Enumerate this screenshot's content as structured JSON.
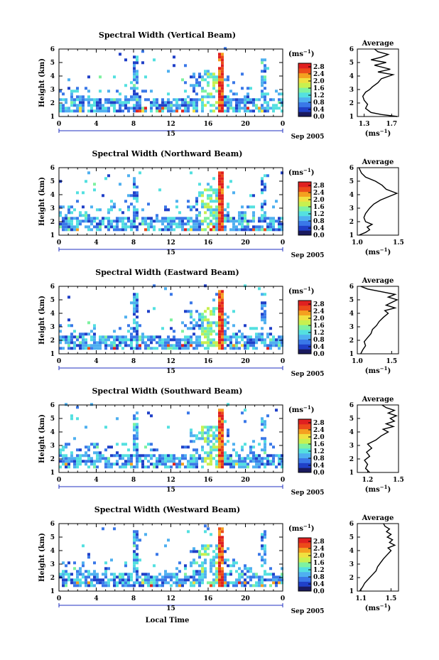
{
  "figure": {
    "xlabel": "Local Time",
    "date_label": "Sep 2005"
  },
  "colorbar": {
    "unit_label": "(ms",
    "unit_exp": "−1",
    "ticks": [
      "0.0",
      "0.4",
      "0.8",
      "1.2",
      "1.6",
      "2.0",
      "2.4",
      "2.8"
    ],
    "range": [
      0,
      3.0
    ],
    "colors": [
      "#1a1a5e",
      "#2040c8",
      "#3a78e8",
      "#4fb0f0",
      "#54e0e0",
      "#7ef2a0",
      "#c8f050",
      "#f0e040",
      "#f4a020",
      "#ec4a1a",
      "#e02020"
    ]
  },
  "chart_data": [
    {
      "type": "heatmap",
      "title": "Spectral Width (Vertical Beam)",
      "xlabel": "",
      "ylabel": "Height (km)",
      "xlim": [
        0,
        24
      ],
      "ylim": [
        1,
        6
      ],
      "x_ticks": [
        "0",
        "4",
        "8",
        "12",
        "16",
        "20",
        "0"
      ],
      "x_day_tick": "15",
      "y_ticks": [
        "1",
        "2",
        "3",
        "4",
        "5",
        "6"
      ],
      "average_profile": {
        "title": "Average",
        "xlabel": "(ms",
        "xlabel_exp": "−1",
        "xlim": [
          1.2,
          1.8
        ],
        "x_ticks": [
          "1.3",
          "1.7"
        ],
        "y_ticks": [
          "1",
          "2",
          "3",
          "4",
          "5",
          "6"
        ],
        "points": [
          [
            1.78,
            1.0
          ],
          [
            1.55,
            1.15
          ],
          [
            1.4,
            1.3
          ],
          [
            1.32,
            1.6
          ],
          [
            1.35,
            1.9
          ],
          [
            1.3,
            2.2
          ],
          [
            1.28,
            2.5
          ],
          [
            1.32,
            2.8
          ],
          [
            1.38,
            3.0
          ],
          [
            1.42,
            3.2
          ],
          [
            1.5,
            3.5
          ],
          [
            1.55,
            3.8
          ],
          [
            1.72,
            4.1
          ],
          [
            1.5,
            4.3
          ],
          [
            1.68,
            4.5
          ],
          [
            1.45,
            4.8
          ],
          [
            1.62,
            5.0
          ],
          [
            1.4,
            5.2
          ],
          [
            1.55,
            5.4
          ],
          [
            1.65,
            5.6
          ],
          [
            1.5,
            5.8
          ],
          [
            1.45,
            6.0
          ]
        ]
      }
    },
    {
      "type": "heatmap",
      "title": "Spectral Width (Northward Beam)",
      "xlabel": "",
      "ylabel": "Height (km)",
      "xlim": [
        0,
        24
      ],
      "ylim": [
        1,
        6
      ],
      "x_ticks": [
        "0",
        "4",
        "8",
        "12",
        "16",
        "20",
        "0"
      ],
      "x_day_tick": "15",
      "y_ticks": [
        "1",
        "2",
        "3",
        "4",
        "5",
        "6"
      ],
      "average_profile": {
        "title": "Average",
        "xlabel": "(ms",
        "xlabel_exp": "−1",
        "xlim": [
          1.0,
          1.5
        ],
        "x_ticks": [
          "1.0",
          "1.5"
        ],
        "y_ticks": [
          "1",
          "2",
          "3",
          "4",
          "5",
          "6"
        ],
        "points": [
          [
            1.02,
            1.0
          ],
          [
            1.1,
            1.2
          ],
          [
            1.15,
            1.4
          ],
          [
            1.12,
            1.6
          ],
          [
            1.18,
            1.8
          ],
          [
            1.1,
            2.0
          ],
          [
            1.08,
            2.3
          ],
          [
            1.1,
            2.6
          ],
          [
            1.15,
            3.0
          ],
          [
            1.2,
            3.3
          ],
          [
            1.28,
            3.6
          ],
          [
            1.4,
            3.9
          ],
          [
            1.48,
            4.1
          ],
          [
            1.35,
            4.4
          ],
          [
            1.3,
            4.7
          ],
          [
            1.22,
            5.0
          ],
          [
            1.1,
            5.3
          ],
          [
            1.05,
            5.6
          ],
          [
            1.02,
            6.0
          ]
        ]
      }
    },
    {
      "type": "heatmap",
      "title": "Spectral Width (Eastward Beam)",
      "xlabel": "",
      "ylabel": "Height (km)",
      "xlim": [
        0,
        24
      ],
      "ylim": [
        1,
        6
      ],
      "x_ticks": [
        "0",
        "4",
        "8",
        "12",
        "16",
        "20",
        "0"
      ],
      "x_day_tick": "15",
      "y_ticks": [
        "1",
        "2",
        "3",
        "4",
        "5",
        "6"
      ],
      "average_profile": {
        "title": "Average",
        "xlabel": "(ms",
        "xlabel_exp": "−1",
        "xlim": [
          1.0,
          1.6
        ],
        "x_ticks": [
          "1.0",
          "1.5"
        ],
        "y_ticks": [
          "1",
          "2",
          "3",
          "4",
          "5",
          "6"
        ],
        "points": [
          [
            1.05,
            1.0
          ],
          [
            1.08,
            1.3
          ],
          [
            1.12,
            1.6
          ],
          [
            1.1,
            1.9
          ],
          [
            1.15,
            2.2
          ],
          [
            1.2,
            2.5
          ],
          [
            1.22,
            2.8
          ],
          [
            1.28,
            3.1
          ],
          [
            1.32,
            3.4
          ],
          [
            1.38,
            3.7
          ],
          [
            1.45,
            4.0
          ],
          [
            1.4,
            4.2
          ],
          [
            1.55,
            4.4
          ],
          [
            1.42,
            4.6
          ],
          [
            1.5,
            4.8
          ],
          [
            1.58,
            5.0
          ],
          [
            1.45,
            5.2
          ],
          [
            1.55,
            5.4
          ],
          [
            1.35,
            5.6
          ],
          [
            1.15,
            5.8
          ],
          [
            1.05,
            6.0
          ]
        ]
      }
    },
    {
      "type": "heatmap",
      "title": "Spectral Width (Southward Beam)",
      "xlabel": "",
      "ylabel": "Height (km)",
      "xlim": [
        0,
        24
      ],
      "ylim": [
        1,
        6
      ],
      "x_ticks": [
        "0",
        "4",
        "8",
        "12",
        "16",
        "20",
        "0"
      ],
      "x_day_tick": "15",
      "y_ticks": [
        "1",
        "2",
        "3",
        "4",
        "5",
        "6"
      ],
      "average_profile": {
        "title": "Average",
        "xlabel": "(ms",
        "xlabel_exp": "−1",
        "xlim": [
          1.1,
          1.5
        ],
        "x_ticks": [
          "1.2",
          "1.5"
        ],
        "y_ticks": [
          "1",
          "2",
          "3",
          "4",
          "5",
          "6"
        ],
        "points": [
          [
            1.22,
            1.0
          ],
          [
            1.18,
            1.3
          ],
          [
            1.2,
            1.6
          ],
          [
            1.17,
            1.9
          ],
          [
            1.22,
            2.2
          ],
          [
            1.19,
            2.5
          ],
          [
            1.24,
            2.8
          ],
          [
            1.2,
            3.1
          ],
          [
            1.28,
            3.4
          ],
          [
            1.33,
            3.7
          ],
          [
            1.4,
            4.0
          ],
          [
            1.35,
            4.2
          ],
          [
            1.45,
            4.4
          ],
          [
            1.38,
            4.6
          ],
          [
            1.46,
            4.8
          ],
          [
            1.42,
            5.0
          ],
          [
            1.48,
            5.2
          ],
          [
            1.4,
            5.4
          ],
          [
            1.46,
            5.6
          ],
          [
            1.38,
            5.8
          ],
          [
            1.34,
            6.0
          ]
        ]
      }
    },
    {
      "type": "heatmap",
      "title": "Spectral Width (Westward Beam)",
      "xlabel": "Local Time",
      "ylabel": "Height (km)",
      "xlim": [
        0,
        24
      ],
      "ylim": [
        1,
        6
      ],
      "x_ticks": [
        "0",
        "4",
        "8",
        "12",
        "16",
        "20",
        "0"
      ],
      "x_day_tick": "15",
      "y_ticks": [
        "1",
        "2",
        "3",
        "4",
        "5",
        "6"
      ],
      "average_profile": {
        "title": "Average",
        "xlabel": "(ms",
        "xlabel_exp": "−1",
        "xlim": [
          1.05,
          1.6
        ],
        "x_ticks": [
          "1.1",
          "1.5"
        ],
        "y_ticks": [
          "1",
          "2",
          "3",
          "4",
          "5",
          "6"
        ],
        "points": [
          [
            1.08,
            1.0
          ],
          [
            1.12,
            1.3
          ],
          [
            1.15,
            1.6
          ],
          [
            1.2,
            1.9
          ],
          [
            1.25,
            2.2
          ],
          [
            1.3,
            2.5
          ],
          [
            1.32,
            2.8
          ],
          [
            1.36,
            3.1
          ],
          [
            1.4,
            3.4
          ],
          [
            1.45,
            3.7
          ],
          [
            1.5,
            4.0
          ],
          [
            1.46,
            4.2
          ],
          [
            1.55,
            4.4
          ],
          [
            1.48,
            4.6
          ],
          [
            1.52,
            4.8
          ],
          [
            1.45,
            5.0
          ],
          [
            1.5,
            5.2
          ],
          [
            1.44,
            5.4
          ],
          [
            1.48,
            5.6
          ],
          [
            1.42,
            5.8
          ],
          [
            1.4,
            6.0
          ]
        ]
      }
    }
  ]
}
